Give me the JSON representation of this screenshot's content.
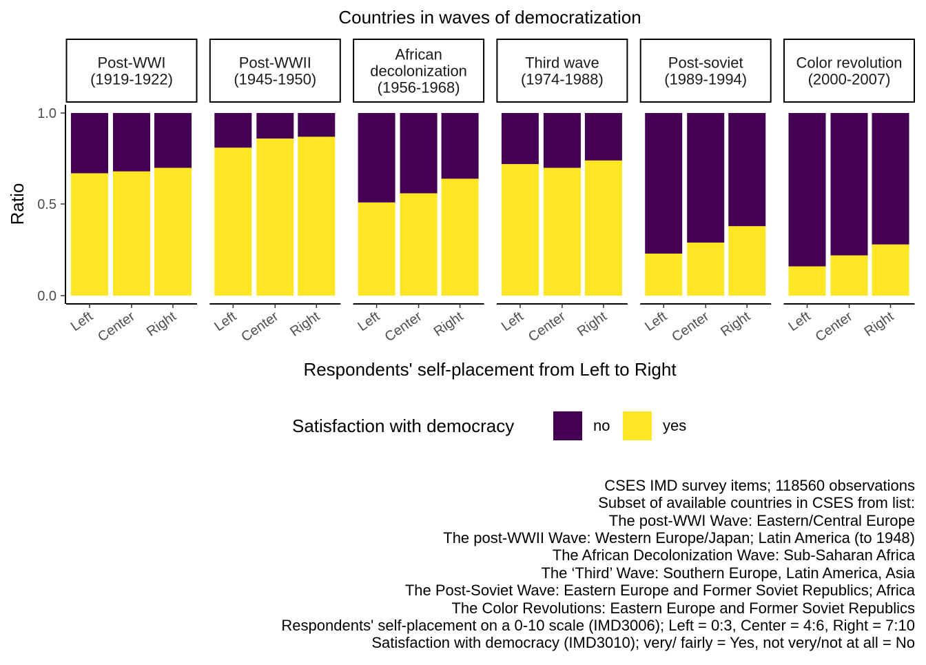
{
  "chart_data": {
    "type": "bar",
    "title": "Countries in waves of democratization",
    "xlabel": "Respondents' self-placement from Left to Right",
    "ylabel": "Ratio",
    "ylim": [
      0,
      1
    ],
    "yticks": [
      "0.0",
      "0.5",
      "1.0"
    ],
    "categories": [
      "Left",
      "Center",
      "Right"
    ],
    "stacked": true,
    "legend": {
      "title": "Satisfaction with democracy",
      "position": "bottom",
      "items": [
        {
          "label": "no",
          "color": "#440154"
        },
        {
          "label": "yes",
          "color": "#FDE725"
        }
      ]
    },
    "panels": [
      {
        "line1": "Post-WWI",
        "line2": "(1919-1922)",
        "line3": "",
        "yes": [
          0.67,
          0.68,
          0.7
        ]
      },
      {
        "line1": "Post-WWII",
        "line2": "(1945-1950)",
        "line3": "",
        "yes": [
          0.81,
          0.86,
          0.87
        ]
      },
      {
        "line1": "African",
        "line2": "decolonization",
        "line3": "(1956-1968)",
        "yes": [
          0.51,
          0.56,
          0.64
        ]
      },
      {
        "line1": "Third wave",
        "line2": "(1974-1988)",
        "line3": "",
        "yes": [
          0.72,
          0.7,
          0.74
        ]
      },
      {
        "line1": "Post-soviet",
        "line2": "(1989-1994)",
        "line3": "",
        "yes": [
          0.23,
          0.29,
          0.38
        ]
      },
      {
        "line1": "Color revolution",
        "line2": "(2000-2007)",
        "line3": "",
        "yes": [
          0.16,
          0.22,
          0.28
        ]
      }
    ]
  },
  "caption": [
    "CSES IMD survey items; 118560 observations",
    "Subset of available countries in CSES from list:",
    "The post-WWI Wave: Eastern/Central Europe",
    "The post-WWII Wave: Western Europe/Japan; Latin America (to 1948)",
    "The African Decolonization Wave: Sub-Saharan Africa",
    "The ‘Third’ Wave: Southern Europe, Latin America, Asia",
    "The Post-Soviet Wave: Eastern Europe and Former Soviet Republics; Africa",
    "The Color Revolutions: Eastern Europe and Former Soviet Republics",
    "Respondents' self-placement on a 0-10 scale (IMD3006); Left = 0:3, Center = 4:6, Right = 7:10",
    "Satisfaction with democracy (IMD3010); very/ fairly = Yes, not very/not at all = No"
  ]
}
